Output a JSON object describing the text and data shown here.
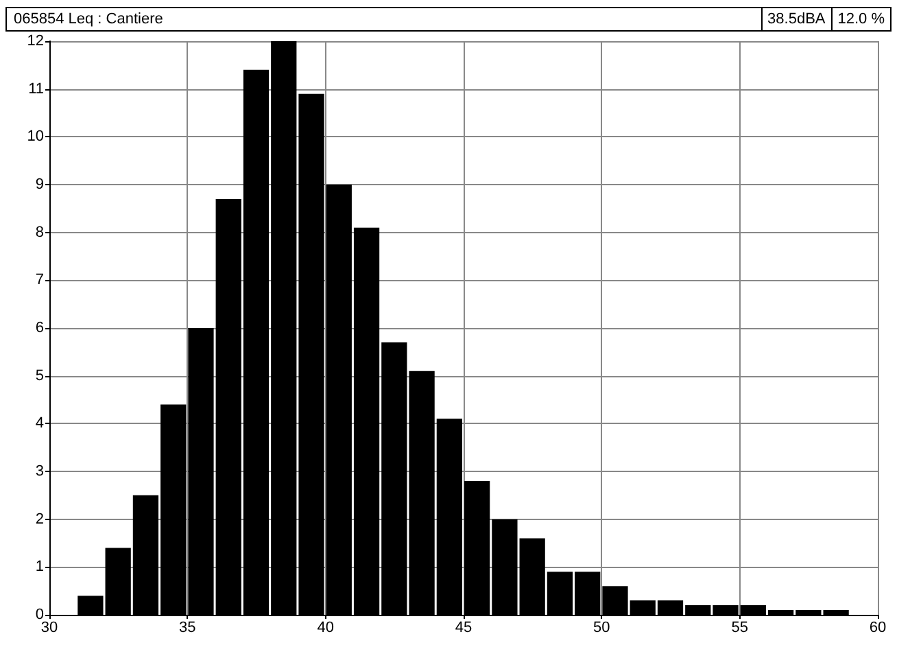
{
  "chart_data": {
    "type": "histogram",
    "title": "065854  Leq : Cantiere",
    "annotations": [
      "38.5dBA",
      "12.0 %"
    ],
    "bins": [
      31,
      32,
      33,
      34,
      35,
      36,
      37,
      38,
      39,
      40,
      41,
      42,
      43,
      44,
      45,
      46,
      47,
      48,
      49,
      50,
      51,
      52,
      53,
      54,
      55,
      56,
      57,
      58,
      59
    ],
    "values": [
      0.4,
      1.4,
      2.5,
      4.4,
      6.0,
      8.7,
      11.4,
      12.0,
      10.9,
      9.0,
      8.1,
      5.7,
      5.1,
      4.1,
      2.8,
      2.0,
      1.6,
      0.9,
      0.9,
      0.6,
      0.3,
      0.3,
      0.2,
      0.2,
      0.2,
      0.1,
      0.1,
      0.1
    ],
    "color": "#000000",
    "xlim": [
      30,
      60
    ],
    "xticks": [
      30,
      35,
      40,
      45,
      50,
      55,
      60
    ],
    "ylim": [
      0,
      12
    ],
    "yticks": [
      0,
      1,
      2,
      3,
      4,
      5,
      6,
      7,
      8,
      9,
      10,
      11,
      12
    ],
    "grid": true
  }
}
